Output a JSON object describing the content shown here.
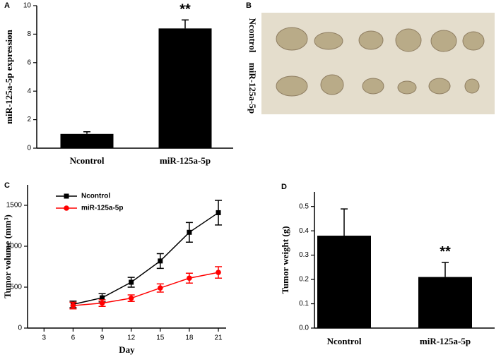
{
  "chart_data": [
    {
      "type": "bar",
      "panel_label": "A",
      "ylabel": "miR-125a-5p expression",
      "categories": [
        "Ncontrol",
        "miR-125a-5p"
      ],
      "values": [
        1.0,
        8.4
      ],
      "errors": [
        0.15,
        0.6
      ],
      "color": "#000000",
      "ylim": [
        0,
        10
      ],
      "yticks": [
        0,
        2,
        4,
        6,
        8,
        10
      ],
      "annotations": [
        {
          "text": "**",
          "category": "miR-125a-5p"
        }
      ]
    },
    {
      "type": "image",
      "panel_label": "B",
      "row_labels": [
        "Ncontrol",
        "miR-125a-5p"
      ]
    },
    {
      "type": "line",
      "panel_label": "C",
      "ylabel": "Tumor volume (mm³)",
      "xlabel": "Day",
      "x": [
        6,
        9,
        12,
        15,
        18,
        21
      ],
      "xlim": [
        1.3,
        21.8
      ],
      "xticks": [
        3,
        6,
        9,
        12,
        15,
        18,
        21
      ],
      "ylim": [
        0,
        1750
      ],
      "yticks": [
        0,
        500,
        1000,
        1500
      ],
      "legend": "top-left",
      "series": [
        {
          "name": "Ncontrol",
          "color": "#000000",
          "marker": "square",
          "values": [
            290,
            370,
            560,
            820,
            1170,
            1410
          ],
          "errors": [
            40,
            50,
            60,
            90,
            120,
            150
          ]
        },
        {
          "name": "miR-125a-5p",
          "color": "#ff0000",
          "marker": "circle",
          "values": [
            275,
            305,
            365,
            490,
            610,
            680
          ],
          "errors": [
            40,
            40,
            40,
            50,
            60,
            70
          ]
        }
      ]
    },
    {
      "type": "bar",
      "panel_label": "D",
      "ylabel": "Tumor  weight (g)",
      "categories": [
        "Ncontrol",
        "miR-125a-5p"
      ],
      "values": [
        0.38,
        0.21
      ],
      "errors": [
        0.11,
        0.06
      ],
      "color": "#000000",
      "ylim": [
        0,
        0.56
      ],
      "yticks": [
        {
          "value": 0,
          "label": "0.0"
        },
        0.1,
        0.2,
        0.3,
        0.4,
        0.5
      ],
      "annotations": [
        {
          "text": "**",
          "category": "miR-125a-5p"
        }
      ]
    }
  ]
}
